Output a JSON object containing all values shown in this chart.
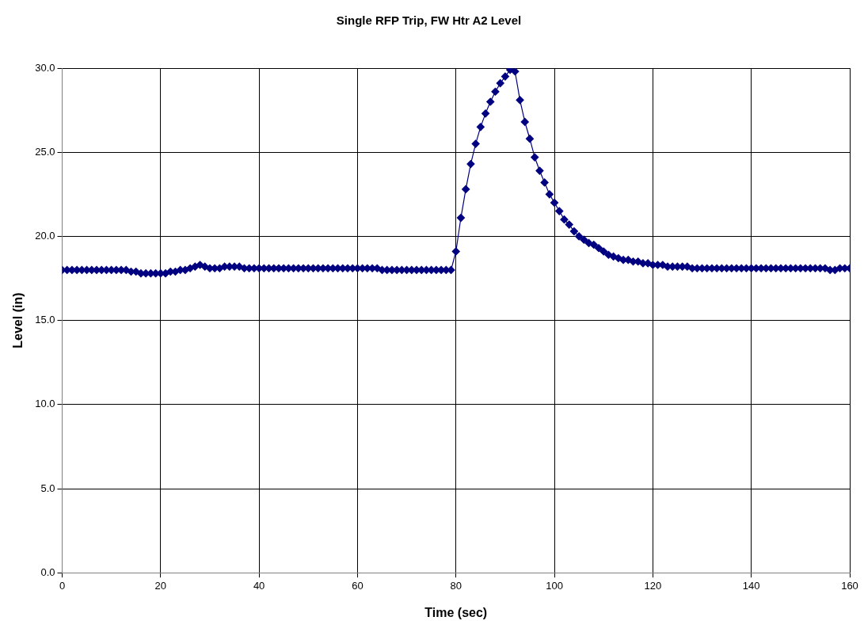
{
  "chart_data": {
    "type": "line",
    "title": "Single RFP Trip, FW Htr A2 Level",
    "xlabel": "Time (sec)",
    "ylabel": "Level (in)",
    "x": [
      0,
      1,
      2,
      3,
      4,
      5,
      6,
      7,
      8,
      9,
      10,
      11,
      12,
      13,
      14,
      15,
      16,
      17,
      18,
      19,
      20,
      21,
      22,
      23,
      24,
      25,
      26,
      27,
      28,
      29,
      30,
      31,
      32,
      33,
      34,
      35,
      36,
      37,
      38,
      39,
      40,
      41,
      42,
      43,
      44,
      45,
      46,
      47,
      48,
      49,
      50,
      51,
      52,
      53,
      54,
      55,
      56,
      57,
      58,
      59,
      60,
      61,
      62,
      63,
      64,
      65,
      66,
      67,
      68,
      69,
      70,
      71,
      72,
      73,
      74,
      75,
      76,
      77,
      78,
      79,
      80,
      81,
      82,
      83,
      84,
      85,
      86,
      87,
      88,
      89,
      90,
      91,
      92,
      93,
      94,
      95,
      96,
      97,
      98,
      99,
      100,
      101,
      102,
      103,
      104,
      105,
      106,
      107,
      108,
      109,
      110,
      111,
      112,
      113,
      114,
      115,
      116,
      117,
      118,
      119,
      120,
      121,
      122,
      123,
      124,
      125,
      126,
      127,
      128,
      129,
      130,
      131,
      132,
      133,
      134,
      135,
      136,
      137,
      138,
      139,
      140,
      141,
      142,
      143,
      144,
      145,
      146,
      147,
      148,
      149,
      150,
      151,
      152,
      153,
      154,
      155,
      156,
      157,
      158,
      159,
      160
    ],
    "series": [
      {
        "color": "#000080",
        "values": [
          18.0,
          18.0,
          18.0,
          18.0,
          18.0,
          18.0,
          18.0,
          18.0,
          18.0,
          18.0,
          18.0,
          18.0,
          18.0,
          18.0,
          17.9,
          17.9,
          17.8,
          17.8,
          17.8,
          17.8,
          17.8,
          17.8,
          17.9,
          17.9,
          18.0,
          18.0,
          18.1,
          18.2,
          18.3,
          18.2,
          18.1,
          18.1,
          18.1,
          18.2,
          18.2,
          18.2,
          18.2,
          18.1,
          18.1,
          18.1,
          18.1,
          18.1,
          18.1,
          18.1,
          18.1,
          18.1,
          18.1,
          18.1,
          18.1,
          18.1,
          18.1,
          18.1,
          18.1,
          18.1,
          18.1,
          18.1,
          18.1,
          18.1,
          18.1,
          18.1,
          18.1,
          18.1,
          18.1,
          18.1,
          18.1,
          18.0,
          18.0,
          18.0,
          18.0,
          18.0,
          18.0,
          18.0,
          18.0,
          18.0,
          18.0,
          18.0,
          18.0,
          18.0,
          18.0,
          18.0,
          19.1,
          21.1,
          22.8,
          24.3,
          25.5,
          26.5,
          27.3,
          28.0,
          28.6,
          29.1,
          29.5,
          29.9,
          29.8,
          28.1,
          26.8,
          25.8,
          24.7,
          23.9,
          23.2,
          22.5,
          22.0,
          21.5,
          21.0,
          20.7,
          20.3,
          20.0,
          19.8,
          19.6,
          19.5,
          19.3,
          19.1,
          18.9,
          18.8,
          18.7,
          18.6,
          18.6,
          18.5,
          18.5,
          18.4,
          18.4,
          18.3,
          18.3,
          18.3,
          18.2,
          18.2,
          18.2,
          18.2,
          18.2,
          18.1,
          18.1,
          18.1,
          18.1,
          18.1,
          18.1,
          18.1,
          18.1,
          18.1,
          18.1,
          18.1,
          18.1,
          18.1,
          18.1,
          18.1,
          18.1,
          18.1,
          18.1,
          18.1,
          18.1,
          18.1,
          18.1,
          18.1,
          18.1,
          18.1,
          18.1,
          18.1,
          18.1,
          18.0,
          18.0,
          18.1,
          18.1,
          18.1
        ]
      }
    ],
    "xlim": [
      0,
      160
    ],
    "xticks": [
      0,
      20,
      40,
      60,
      80,
      100,
      120,
      140,
      160
    ],
    "ylim": [
      0,
      30
    ],
    "yticks": [
      {
        "value": 0,
        "label": "0.0"
      },
      {
        "value": 5,
        "label": "5.0"
      },
      {
        "value": 10,
        "label": "10.0"
      },
      {
        "value": 15,
        "label": "15.0"
      },
      {
        "value": 20,
        "label": "20.0"
      },
      {
        "value": 25,
        "label": "25.0"
      },
      {
        "value": 30,
        "label": "30.0"
      }
    ],
    "grid": true,
    "legend": false,
    "marker": "diamond",
    "line_style": "solid"
  }
}
